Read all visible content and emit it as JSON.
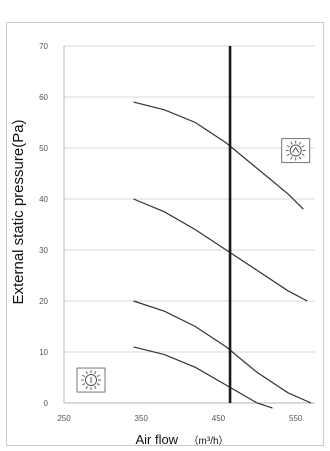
{
  "chart_data": {
    "type": "line",
    "xlabel": "Air flow",
    "xunit": "（m³/h）",
    "ylabel": "External static pressure(Pa)",
    "xlim": [
      250,
      575
    ],
    "ylim": [
      0,
      70
    ],
    "xticks": [
      250,
      350,
      450,
      550
    ],
    "xtick_labels": [
      "250",
      "350",
      "450",
      "550"
    ],
    "yticks": [
      0,
      10,
      20,
      30,
      40,
      50,
      60,
      70
    ],
    "ytick_labels": [
      "0",
      "10",
      "20",
      "30",
      "40",
      "50",
      "60",
      "70"
    ],
    "grid": "horizontal",
    "series": [
      {
        "x": [
          340,
          380,
          420,
          460,
          500,
          540,
          560
        ],
        "y": [
          59,
          57.5,
          55,
          51,
          46,
          41,
          38
        ]
      },
      {
        "x": [
          340,
          380,
          420,
          460,
          500,
          540,
          565
        ],
        "y": [
          40,
          37.5,
          34,
          30,
          26,
          22,
          20
        ]
      },
      {
        "x": [
          340,
          380,
          420,
          460,
          500,
          540,
          570
        ],
        "y": [
          20,
          18,
          15,
          11,
          6,
          2,
          0
        ]
      },
      {
        "x": [
          340,
          380,
          420,
          460,
          500,
          520
        ],
        "y": [
          11,
          9.5,
          7,
          3.5,
          0,
          -1
        ]
      }
    ],
    "vline": {
      "x": 465
    },
    "icons": [
      {
        "name": "high-speed-fan-icon",
        "x": 550,
        "y": 49.5
      },
      {
        "name": "low-speed-fan-icon",
        "x": 285,
        "y": 4.5
      }
    ]
  }
}
